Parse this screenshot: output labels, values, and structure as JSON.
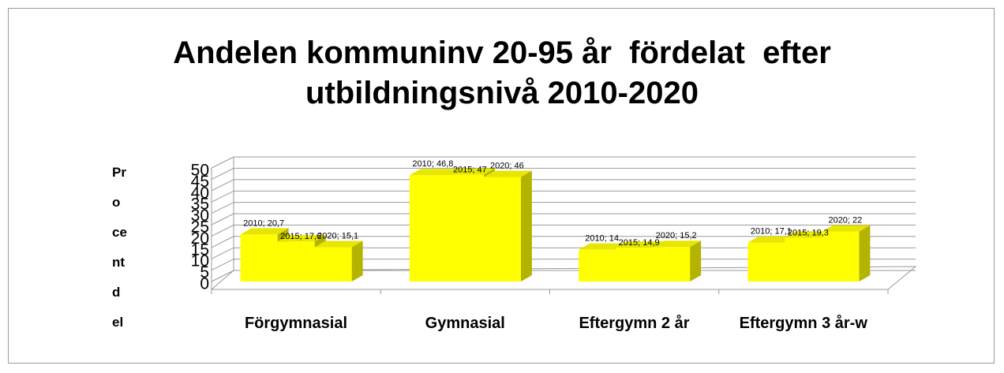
{
  "chart_data": {
    "type": "bar3d",
    "title": "Andelen kommuninv 20-95 år  fördelat  efter utbildningsnivå 2010-2020",
    "ylabel": "Procentdel",
    "categories": [
      "Förgymnasial",
      "Gymnasial",
      "Eftergymn 2 år",
      "Eftergymn 3 år-w"
    ],
    "series": [
      {
        "name": "2010",
        "color": "#ffff00",
        "values": [
          20.7,
          46.8,
          14,
          17.1
        ],
        "value_labels": [
          "2010; 20,7",
          "2010; 46,8",
          "2010; 14",
          "2010; 17,1"
        ]
      },
      {
        "name": "2015",
        "color": "#ffff00",
        "values": [
          17.6,
          47,
          14.9,
          19.3
        ],
        "value_labels": [
          "2015; 17,6",
          "2015; 47",
          "2015; 14,9",
          "2015; 19,3"
        ]
      },
      {
        "name": "2020",
        "color": "#ffff00",
        "values": [
          15.1,
          46,
          15.2,
          22
        ],
        "value_labels": [
          "2020; 15,1",
          "2020; 46",
          "2020; 15,2",
          "2020; 22"
        ]
      }
    ],
    "ylim": [
      0,
      50
    ],
    "yticks": [
      0,
      5,
      10,
      15,
      20,
      25,
      30,
      35,
      40,
      45,
      50
    ],
    "grid": true
  }
}
